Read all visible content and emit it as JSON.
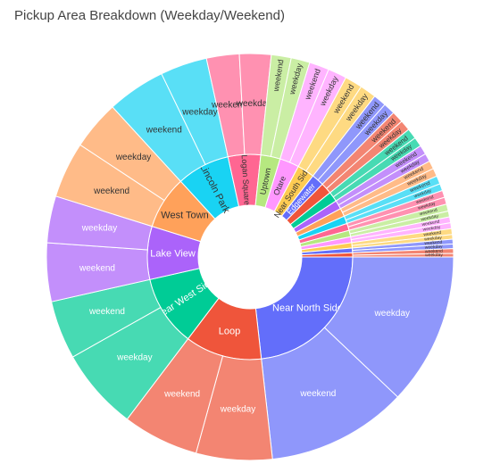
{
  "chart_data": {
    "type": "sunburst",
    "title": "Pickup Area Breakdown (Weekday/Weekend)",
    "root": {
      "label": "",
      "children": [
        {
          "label": "Near North Side",
          "color": "#636efa",
          "children": [
            {
              "label": "weekday",
              "value": 13.0
            },
            {
              "label": "weekend",
              "value": 12.0
            }
          ]
        },
        {
          "label": "Loop",
          "color": "#ef553b",
          "children": [
            {
              "label": "weekday",
              "value": 6.5
            },
            {
              "label": "weekend",
              "value": 6.5
            }
          ]
        },
        {
          "label": "Near West Side",
          "color": "#00cc96",
          "children": [
            {
              "label": "weekday",
              "value": 7.0
            },
            {
              "label": "weekend",
              "value": 5.0
            }
          ]
        },
        {
          "label": "Lake View",
          "color": "#ab63fa",
          "children": [
            {
              "label": "weekend",
              "value": 5.0
            },
            {
              "label": "weekday",
              "value": 4.0
            }
          ]
        },
        {
          "label": "West Town",
          "color": "#ffa15a",
          "children": [
            {
              "label": "weekend",
              "value": 4.8
            },
            {
              "label": "weekday",
              "value": 4.2
            }
          ]
        },
        {
          "label": "Lincoln Park",
          "color": "#19d3f3",
          "children": [
            {
              "label": "weekend",
              "value": 5.0
            },
            {
              "label": "weekday",
              "value": 4.0
            }
          ]
        },
        {
          "label": "Logan Square",
          "color": "#ff6692",
          "children": [
            {
              "label": "weekend",
              "value": 2.8
            },
            {
              "label": "weekday",
              "value": 2.7
            }
          ]
        },
        {
          "label": "Uptown",
          "color": "#b6e880",
          "children": [
            {
              "label": "weekend",
              "value": 1.7
            },
            {
              "label": "weekday",
              "value": 1.6
            }
          ]
        },
        {
          "label": "Otare",
          "color": "#ff97ff",
          "children": [
            {
              "label": "weekend",
              "value": 1.7
            },
            {
              "label": "weekday",
              "value": 1.6
            }
          ]
        },
        {
          "label": "Near South Side",
          "color": "#fecb52",
          "children": [
            {
              "label": "weekend",
              "value": 1.5
            },
            {
              "label": "weekday",
              "value": 1.4
            }
          ]
        },
        {
          "label": "Edgewater",
          "color": "#636efa",
          "children": [
            {
              "label": "weekend",
              "value": 1.1
            },
            {
              "label": "weekday",
              "value": 1.0
            }
          ]
        },
        {
          "label": "Hyde Park",
          "color": "#ef553b",
          "children": [
            {
              "label": "weekend",
              "value": 1.0
            },
            {
              "label": "weekday",
              "value": 0.9
            }
          ]
        },
        {
          "label": "West Ridge",
          "color": "#00cc96",
          "children": [
            {
              "label": "weekend",
              "value": 0.9
            },
            {
              "label": "weekday",
              "value": 0.8
            }
          ]
        },
        {
          "label": "Lower West Side",
          "color": "#ab63fa",
          "children": [
            {
              "label": "weekend",
              "value": 0.8
            },
            {
              "label": "weekday",
              "value": 0.7
            }
          ]
        },
        {
          "label": "Garfield Ridge",
          "color": "#ffa15a",
          "children": [
            {
              "label": "weekend",
              "value": 0.7
            },
            {
              "label": "weekday",
              "value": 0.7
            }
          ]
        },
        {
          "label": "North Center",
          "color": "#19d3f3",
          "children": [
            {
              "label": "weekend",
              "value": 0.7
            },
            {
              "label": "weekday",
              "value": 0.6
            }
          ]
        },
        {
          "label": "Austin",
          "color": "#ff6692",
          "children": [
            {
              "label": "weekend",
              "value": 0.6
            },
            {
              "label": "weekday",
              "value": 0.6
            }
          ]
        },
        {
          "label": "Avondale",
          "color": "#b6e880",
          "children": [
            {
              "label": "weekend",
              "value": 0.6
            },
            {
              "label": "weekday",
              "value": 0.5
            }
          ]
        },
        {
          "label": "Lincoln Square",
          "color": "#ff97ff",
          "children": [
            {
              "label": "weekend",
              "value": 0.5
            },
            {
              "label": "weekday",
              "value": 0.5
            }
          ]
        },
        {
          "label": "Rogers Park",
          "color": "#fecb52",
          "children": [
            {
              "label": "weekend",
              "value": 0.5
            },
            {
              "label": "weekday",
              "value": 0.4
            }
          ]
        },
        {
          "label": "Irving Park",
          "color": "#636efa",
          "children": [
            {
              "label": "weekend",
              "value": 0.4
            },
            {
              "label": "weekday",
              "value": 0.4
            }
          ]
        },
        {
          "label": "South Shore",
          "color": "#ef553b",
          "children": [
            {
              "label": "weekend",
              "value": 0.4
            },
            {
              "label": "weekday",
              "value": 0.3
            }
          ]
        }
      ]
    },
    "start_angle_deg": 0,
    "direction": "clockwise",
    "inner_labels_shown": [
      "Near North Side",
      "Loop",
      "Near West Side",
      "Lake View",
      "West Town",
      "Lincoln Park",
      "Logan Square",
      "Uptown",
      "Otare",
      "Near South Side",
      "Edgewater",
      "Hyde Park",
      "West Ridge",
      "Lower West Side",
      "Garfield Ridge",
      "North Center",
      "Austin",
      "Avondale",
      "Lincoln Square",
      "Rogers Park",
      "Irving Park",
      "South Shore"
    ]
  }
}
